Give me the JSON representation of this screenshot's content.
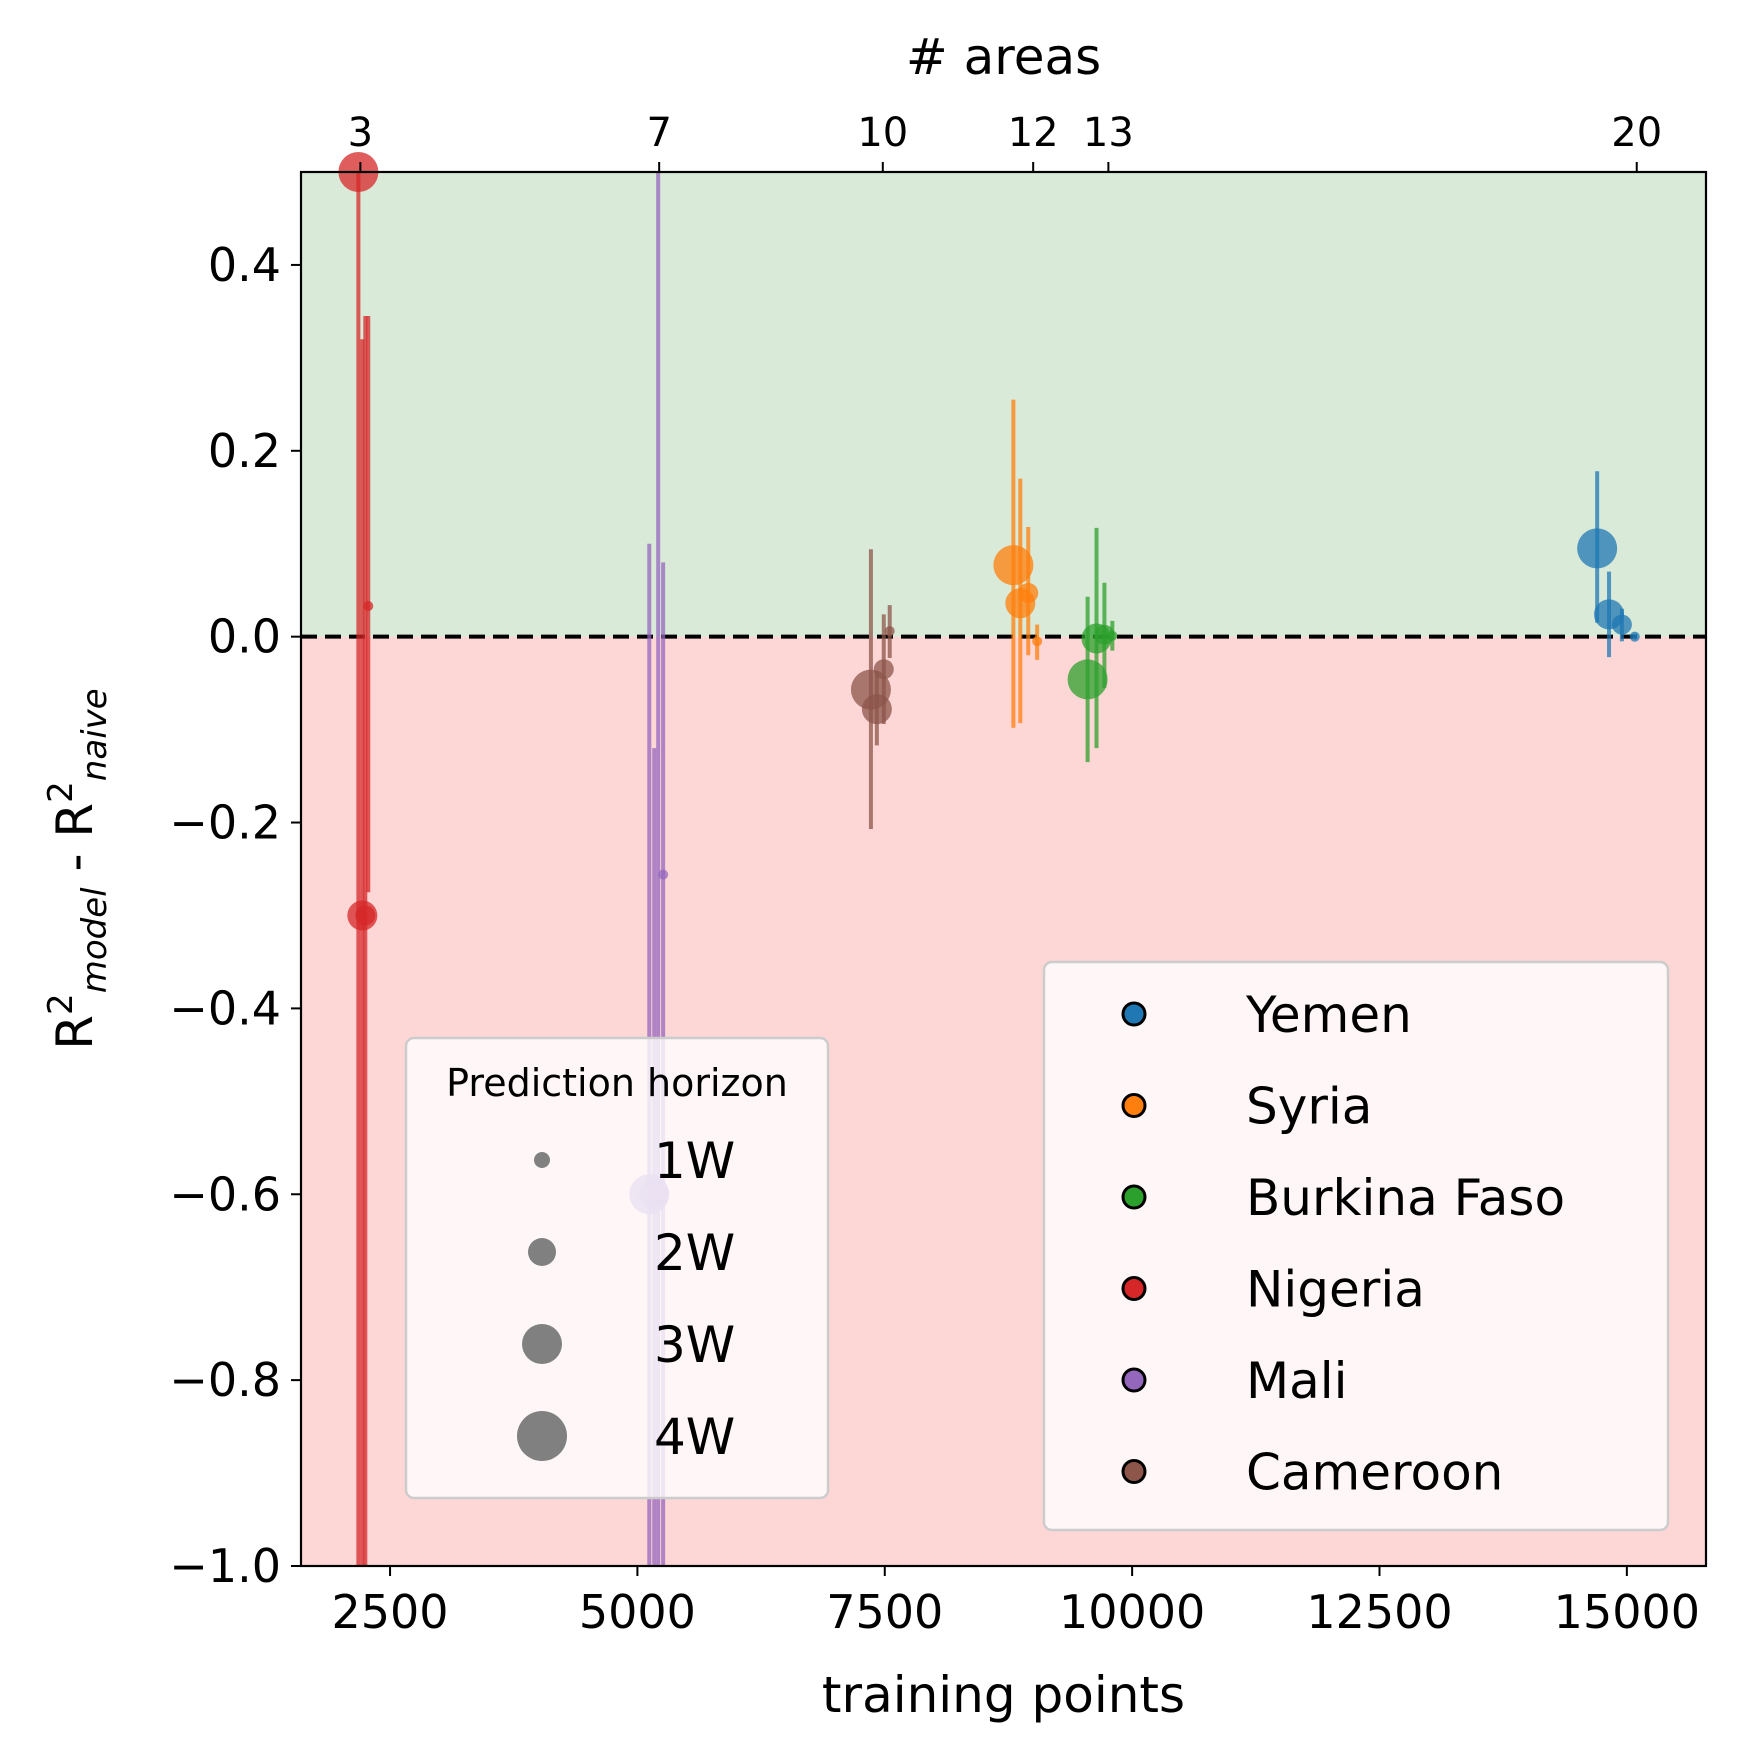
{
  "chart_data": {
    "type": "scatter",
    "title": "",
    "xlabel": "training points",
    "ylabel_parts": {
      "base": "R",
      "exp": "2",
      "sub_model": "model",
      "sep": " - ",
      "sub_naive": "naive"
    },
    "top_xlabel": "# areas",
    "xlim": [
      1600,
      15800
    ],
    "ylim": [
      -1.0,
      0.5
    ],
    "x_ticks": [
      2500,
      5000,
      7500,
      10000,
      12500,
      15000
    ],
    "x_tick_labels": [
      "2500",
      "5000",
      "7500",
      "10000",
      "12500",
      "15000"
    ],
    "y_ticks": [
      0.4,
      0.2,
      0.0,
      -0.2,
      -0.4,
      -0.6,
      -0.8,
      -1.0
    ],
    "y_tick_labels": [
      "0.4",
      "0.2",
      "0.0",
      "−0.2",
      "−0.4",
      "−0.6",
      "−0.8",
      "−1.0"
    ],
    "top_ticks": [
      {
        "x": 2200,
        "label": "3"
      },
      {
        "x": 5220,
        "label": "7"
      },
      {
        "x": 7480,
        "label": "10"
      },
      {
        "x": 9000,
        "label": "12"
      },
      {
        "x": 9760,
        "label": "13"
      },
      {
        "x": 15100,
        "label": "20"
      }
    ],
    "reference_line": {
      "y": 0.0,
      "style": "dashed"
    },
    "regions": [
      {
        "name": "above-zero",
        "from": 0.0,
        "to": 0.5,
        "color": "#d9ead8"
      },
      {
        "name": "below-zero",
        "from": -1.0,
        "to": 0.0,
        "color": "#fdd6d6"
      }
    ],
    "series": [
      {
        "name": "Yemen",
        "color": "#1f77b4",
        "points": [
          {
            "x": 14700,
            "y": 0.095,
            "lo": 0.015,
            "hi": 0.178,
            "h": 4
          },
          {
            "x": 14820,
            "y": 0.024,
            "lo": -0.022,
            "hi": 0.07,
            "h": 3
          },
          {
            "x": 14950,
            "y": 0.013,
            "lo": -0.005,
            "hi": 0.03,
            "h": 2
          },
          {
            "x": 15080,
            "y": 0.0,
            "lo": -0.003,
            "hi": 0.003,
            "h": 1
          }
        ]
      },
      {
        "name": "Syria",
        "color": "#ff7f0e",
        "points": [
          {
            "x": 8800,
            "y": 0.077,
            "lo": -0.098,
            "hi": 0.255,
            "h": 4
          },
          {
            "x": 8870,
            "y": 0.036,
            "lo": -0.093,
            "hi": 0.17,
            "h": 3
          },
          {
            "x": 8950,
            "y": 0.047,
            "lo": -0.02,
            "hi": 0.118,
            "h": 2
          },
          {
            "x": 9040,
            "y": -0.005,
            "lo": -0.025,
            "hi": 0.013,
            "h": 1
          }
        ]
      },
      {
        "name": "Burkina Faso",
        "color": "#2ca02c",
        "points": [
          {
            "x": 9550,
            "y": -0.046,
            "lo": -0.135,
            "hi": 0.043,
            "h": 4
          },
          {
            "x": 9640,
            "y": -0.002,
            "lo": -0.12,
            "hi": 0.117,
            "h": 3
          },
          {
            "x": 9720,
            "y": 0.002,
            "lo": -0.055,
            "hi": 0.058,
            "h": 2
          },
          {
            "x": 9800,
            "y": 0.001,
            "lo": -0.015,
            "hi": 0.017,
            "h": 1
          }
        ]
      },
      {
        "name": "Nigeria",
        "color": "#d62728",
        "points": [
          {
            "x": 2180,
            "y": 0.5,
            "lo": -1.0,
            "hi": 0.5,
            "h": 4
          },
          {
            "x": 2220,
            "y": -0.3,
            "lo": -1.0,
            "hi": 0.32,
            "h": 3
          },
          {
            "x": 2250,
            "y": -0.3,
            "lo": -1.0,
            "hi": 0.345,
            "h": 2
          },
          {
            "x": 2280,
            "y": 0.033,
            "lo": -0.275,
            "hi": 0.345,
            "h": 1
          }
        ]
      },
      {
        "name": "Mali",
        "color": "#9467bd",
        "points": [
          {
            "x": 5120,
            "y": -0.6,
            "lo": -1.0,
            "hi": 0.1,
            "h": 4
          },
          {
            "x": 5170,
            "y": -0.6,
            "lo": -1.0,
            "hi": -0.12,
            "h": 3
          },
          {
            "x": 5210,
            "y": -0.6,
            "lo": -1.0,
            "hi": 0.5,
            "h": 2
          },
          {
            "x": 5260,
            "y": -0.256,
            "lo": -1.0,
            "hi": 0.08,
            "h": 1
          }
        ]
      },
      {
        "name": "Cameroon",
        "color": "#8c564b",
        "points": [
          {
            "x": 7360,
            "y": -0.057,
            "lo": -0.207,
            "hi": 0.094,
            "h": 4
          },
          {
            "x": 7420,
            "y": -0.078,
            "lo": -0.117,
            "hi": -0.037,
            "h": 3
          },
          {
            "x": 7490,
            "y": -0.035,
            "lo": -0.094,
            "hi": 0.024,
            "h": 2
          },
          {
            "x": 7550,
            "y": 0.006,
            "lo": -0.023,
            "hi": 0.034,
            "h": 1
          }
        ]
      }
    ],
    "size_legend": {
      "title": "Prediction horizon",
      "placement": "lower-left",
      "entries": [
        {
          "label": "1W",
          "h": 1
        },
        {
          "label": "2W",
          "h": 2
        },
        {
          "label": "3W",
          "h": 3
        },
        {
          "label": "4W",
          "h": 4
        }
      ]
    },
    "color_legend": {
      "placement": "lower-right",
      "entries": [
        "Yemen",
        "Syria",
        "Burkina Faso",
        "Nigeria",
        "Mali",
        "Cameroon"
      ]
    }
  }
}
